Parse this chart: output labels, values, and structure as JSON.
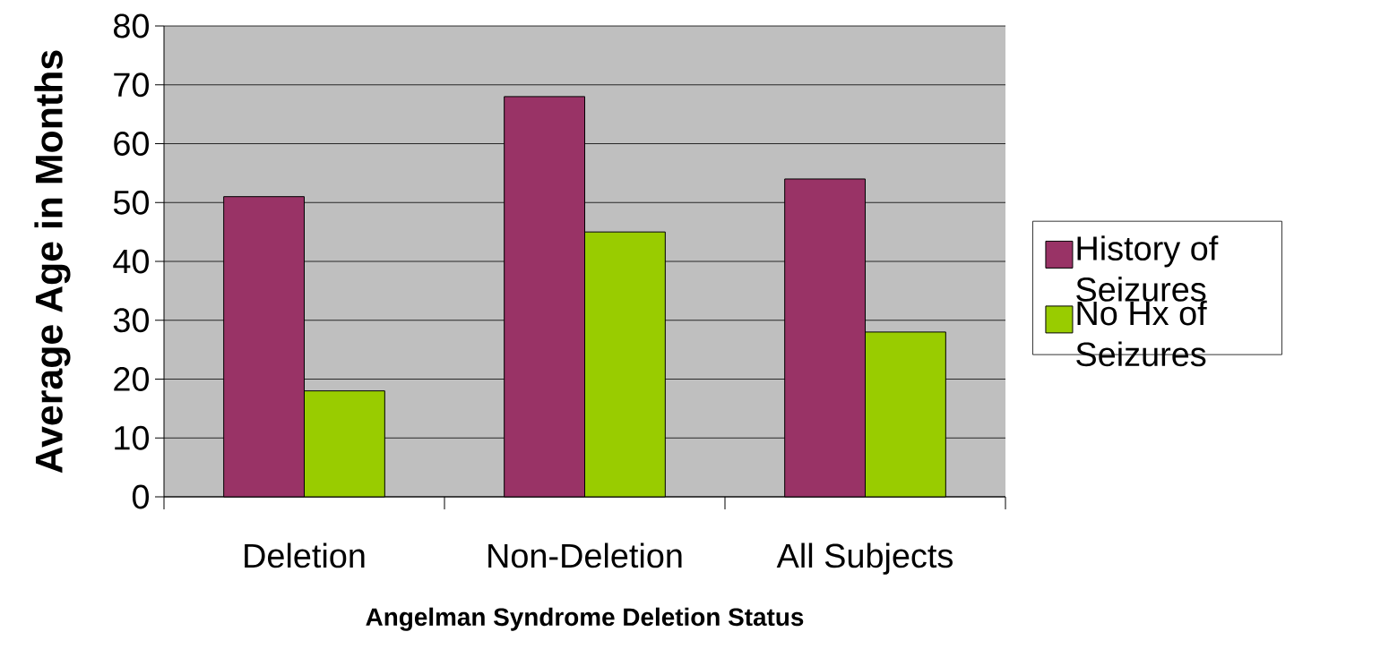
{
  "chart_data": {
    "type": "bar",
    "xlabel": "Angelman Syndrome Deletion Status",
    "ylabel": "Average Age in Months",
    "categories": [
      "Deletion",
      "Non-Deletion",
      "All Subjects"
    ],
    "series": [
      {
        "name": "History of Seizures",
        "color": "#993366",
        "values": [
          51,
          68,
          54
        ]
      },
      {
        "name": "No Hx of Seizures",
        "color": "#99cc00",
        "values": [
          18,
          45,
          28
        ]
      }
    ],
    "ylim": [
      0,
      80
    ],
    "yticks": [
      0,
      10,
      20,
      30,
      40,
      50,
      60,
      70,
      80
    ],
    "grid": "y",
    "legend": "right"
  }
}
